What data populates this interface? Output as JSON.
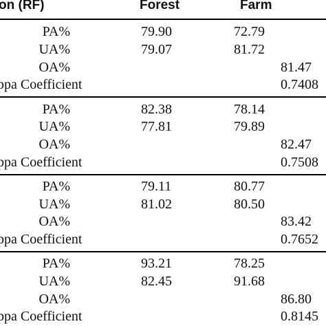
{
  "header": {
    "method": "on (RF)",
    "col_forest": "Forest",
    "col_farm": "Farm"
  },
  "sections": [
    {
      "rows": [
        {
          "label": "PA%",
          "forest": "79.90",
          "farm": "72.79",
          "overall": ""
        },
        {
          "label": "UA%",
          "forest": "79.07",
          "farm": "81.72",
          "overall": ""
        },
        {
          "label": "OA%",
          "forest": "",
          "farm": "",
          "overall": "81.47"
        },
        {
          "label": "ppa Coefficient",
          "forest": "",
          "farm": "",
          "overall": "0.7408"
        }
      ]
    },
    {
      "rows": [
        {
          "label": "PA%",
          "forest": "82.38",
          "farm": "78.14",
          "overall": ""
        },
        {
          "label": "UA%",
          "forest": "77.81",
          "farm": "79.89",
          "overall": ""
        },
        {
          "label": "OA%",
          "forest": "",
          "farm": "",
          "overall": "82.47"
        },
        {
          "label": "ppa Coefficient",
          "forest": "",
          "farm": "",
          "overall": "0.7508"
        }
      ]
    },
    {
      "rows": [
        {
          "label": "PA%",
          "forest": "79.11",
          "farm": "80.77",
          "overall": ""
        },
        {
          "label": "UA%",
          "forest": "81.02",
          "farm": "80.50",
          "overall": ""
        },
        {
          "label": "OA%",
          "forest": "",
          "farm": "",
          "overall": "83.42"
        },
        {
          "label": "ppa Coefficient",
          "forest": "",
          "farm": "",
          "overall": "0.7652"
        }
      ]
    },
    {
      "rows": [
        {
          "label": "PA%",
          "forest": "93.21",
          "farm": "78.25",
          "overall": ""
        },
        {
          "label": "UA%",
          "forest": "82.45",
          "farm": "91.68",
          "overall": ""
        },
        {
          "label": "OA%",
          "forest": "",
          "farm": "",
          "overall": "86.80"
        },
        {
          "label": "ppa Coefficient",
          "forest": "",
          "farm": "",
          "overall": "0.8145"
        }
      ]
    }
  ]
}
